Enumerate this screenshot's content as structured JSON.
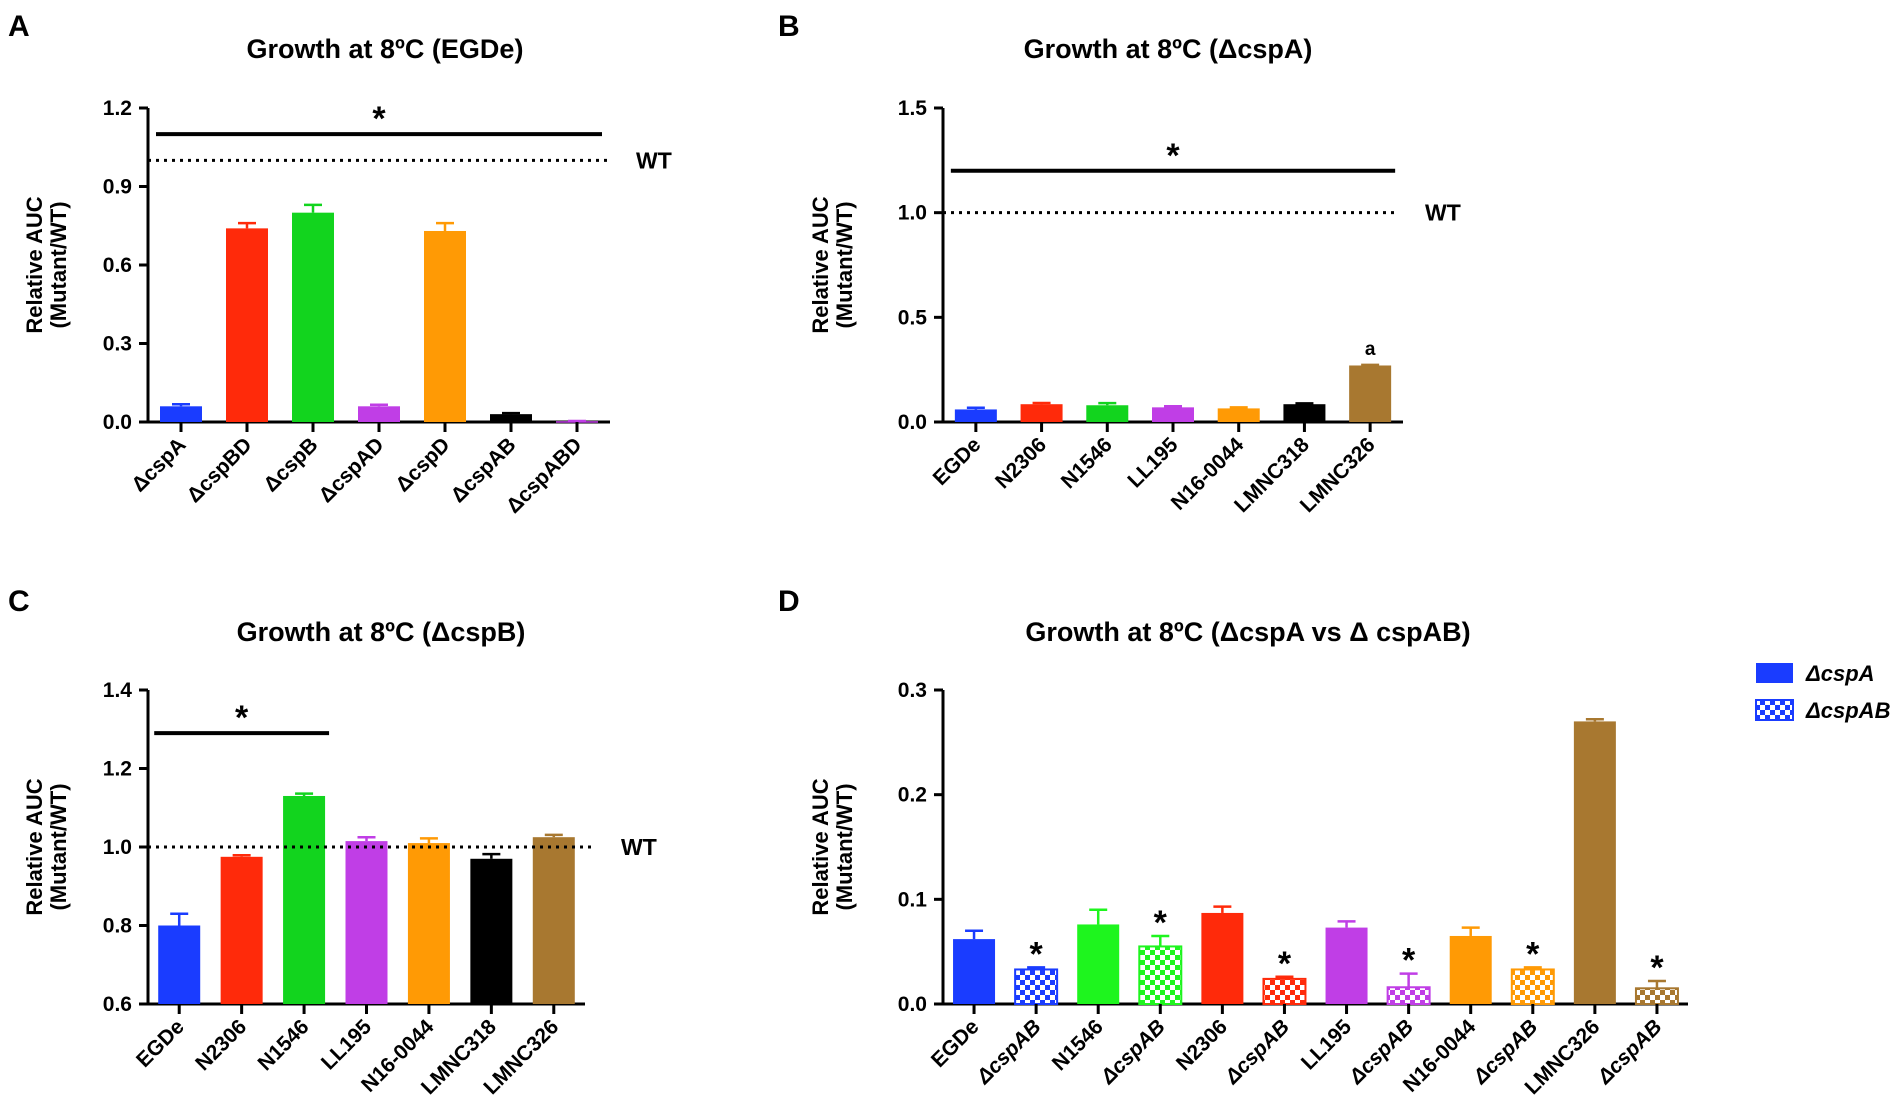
{
  "colors": {
    "blue": "#1a3cff",
    "red": "#ff2a0a",
    "green": "#12d41e",
    "purple": "#c03ee6",
    "orange": "#ff9a05",
    "black": "#000000",
    "brown": "#a87830",
    "brightgreen": "#1ef51e"
  },
  "chart_data": [
    {
      "panel": "A",
      "type": "bar",
      "title": "Growth at 8ºC (EGDe)",
      "ylabel_line1": "Relative AUC",
      "ylabel_line2": "(Mutant/WT)",
      "ylim": [
        0,
        1.2
      ],
      "ticks": [
        "0.0",
        "0.3",
        "0.6",
        "0.9",
        "1.2"
      ],
      "tick_values": [
        0,
        0.3,
        0.6,
        0.9,
        1.2
      ],
      "categories": [
        "ΔcspA",
        "ΔcspBD",
        "ΔcspB",
        "ΔcspAD",
        "ΔcspD",
        "ΔcspAB",
        "ΔcspABD"
      ],
      "values": [
        0.06,
        0.74,
        0.8,
        0.06,
        0.73,
        0.03,
        0.003
      ],
      "errors": [
        0.008,
        0.02,
        0.03,
        0.006,
        0.03,
        0.004,
        0.001
      ],
      "bar_colors": [
        "blue",
        "red",
        "green",
        "purple",
        "orange",
        "black",
        "purple"
      ],
      "wt_line": 1.0,
      "wt_label": "WT",
      "sig_bar": {
        "from": 0,
        "to": 6,
        "value": 1.1,
        "symbol": "*"
      }
    },
    {
      "panel": "B",
      "type": "bar",
      "title": "Growth at 8ºC (ΔcspA)",
      "ylabel_line1": "Relative AUC",
      "ylabel_line2": "(Mutant/WT)",
      "ylim": [
        0,
        1.5
      ],
      "ticks": [
        "0.0",
        "0.5",
        "1.0",
        "1.5"
      ],
      "tick_values": [
        0,
        0.5,
        1.0,
        1.5
      ],
      "categories": [
        "EGDe",
        "N2306",
        "N1546",
        "LL195",
        "N16-0044",
        "LMNC318",
        "LMNC326"
      ],
      "values": [
        0.06,
        0.085,
        0.08,
        0.07,
        0.065,
        0.085,
        0.27
      ],
      "errors": [
        0.008,
        0.006,
        0.01,
        0.005,
        0.005,
        0.004,
        0.003
      ],
      "bar_colors": [
        "blue",
        "red",
        "green",
        "purple",
        "orange",
        "black",
        "brown"
      ],
      "wt_line": 1.0,
      "wt_label": "WT",
      "sig_bar": {
        "from": 0,
        "to": 6,
        "value": 1.2,
        "symbol": "*"
      },
      "letter_annotation": {
        "index": 6,
        "text": "a"
      }
    },
    {
      "panel": "C",
      "type": "bar",
      "title": "Growth at 8ºC (ΔcspB)",
      "ylabel_line1": "Relative AUC",
      "ylabel_line2": "(Mutant/WT)",
      "ylim": [
        0.6,
        1.4
      ],
      "ticks": [
        "0.6",
        "0.8",
        "1.0",
        "1.2",
        "1.4"
      ],
      "tick_values": [
        0.6,
        0.8,
        1.0,
        1.2,
        1.4
      ],
      "categories": [
        "EGDe",
        "N2306",
        "N1546",
        "LL195",
        "N16-0044",
        "LMNC318",
        "LMNC326"
      ],
      "values": [
        0.8,
        0.975,
        1.13,
        1.015,
        1.01,
        0.97,
        1.025
      ],
      "errors": [
        0.03,
        0.004,
        0.006,
        0.01,
        0.012,
        0.012,
        0.006
      ],
      "bar_colors": [
        "blue",
        "red",
        "green",
        "purple",
        "orange",
        "black",
        "brown"
      ],
      "wt_line": 1.0,
      "wt_label": "WT",
      "sig_bar": {
        "from": 0,
        "to": 2,
        "value": 1.29,
        "symbol": "*"
      }
    },
    {
      "panel": "D",
      "type": "bar",
      "title": "Growth at 8ºC (ΔcspA vs Δ cspAB)",
      "ylabel_line1": "Relative AUC",
      "ylabel_line2": "(Mutant/WT)",
      "ylim": [
        0,
        0.3
      ],
      "ticks": [
        "0.0",
        "0.1",
        "0.2",
        "0.3"
      ],
      "tick_values": [
        0,
        0.1,
        0.2,
        0.3
      ],
      "categories": [
        "EGDe",
        "ΔcspAB",
        "N1546",
        "ΔcspAB",
        "N2306",
        "ΔcspAB",
        "LL195",
        "ΔcspAB",
        "N16-0044",
        "ΔcspAB",
        "LMNC326",
        "ΔcspAB"
      ],
      "values": [
        0.062,
        0.033,
        0.076,
        0.055,
        0.087,
        0.024,
        0.073,
        0.016,
        0.065,
        0.033,
        0.27,
        0.015
      ],
      "errors": [
        0.008,
        0.002,
        0.014,
        0.01,
        0.006,
        0.002,
        0.006,
        0.013,
        0.008,
        0.002,
        0.002,
        0.007
      ],
      "bar_colors": [
        "blue",
        "blue",
        "brightgreen",
        "brightgreen",
        "red",
        "red",
        "purple",
        "purple",
        "orange",
        "orange",
        "brown",
        "brown"
      ],
      "patterned": [
        false,
        true,
        false,
        true,
        false,
        true,
        false,
        true,
        false,
        true,
        false,
        true
      ],
      "stars": [
        false,
        true,
        false,
        true,
        false,
        true,
        false,
        true,
        false,
        true,
        false,
        true
      ],
      "star_symbol": "*",
      "legend": [
        {
          "label": "ΔcspA",
          "color": "blue",
          "patterned": false
        },
        {
          "label": "ΔcspAB",
          "color": "blue",
          "patterned": true
        }
      ]
    }
  ]
}
